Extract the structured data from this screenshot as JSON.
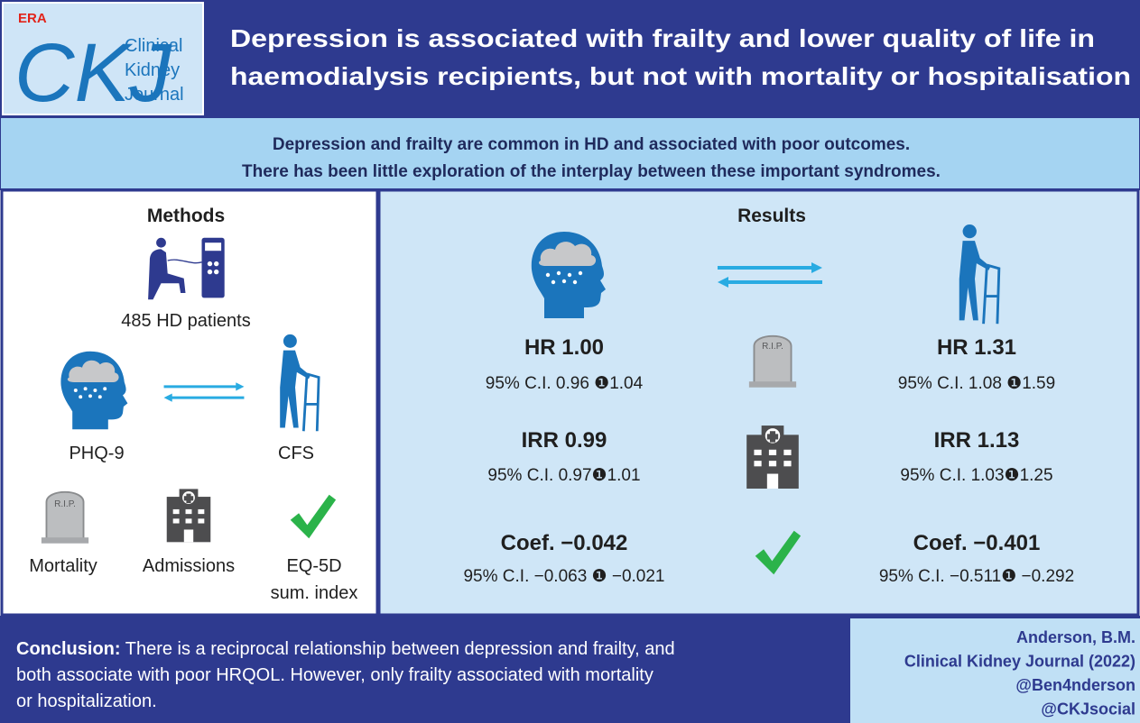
{
  "header": {
    "logo_society": "ERA",
    "logo_mark": "CKJ",
    "logo_journal": [
      "Clinical",
      "Kidney",
      "Journal"
    ],
    "title_lines": [
      "Depression is associated with frailty and lower quality of life in",
      "haemodialysis recipients, but not with mortality or hospitalisation"
    ]
  },
  "intro": {
    "lines": [
      "Depression and frailty are common in HD and associated with poor outcomes.",
      "There has been little exploration of the interplay between these important syndromes."
    ]
  },
  "tombstone_label": "R.I.P.",
  "methods": {
    "title": "Methods",
    "patients": "485 HD patients",
    "exposure": "PHQ-9",
    "frailty": "CFS",
    "outcomes": [
      "Mortality",
      "Admissions"
    ],
    "quality_lines": [
      "EQ-5D",
      "sum. index"
    ]
  },
  "results": {
    "title": "Results",
    "rows": [
      {
        "left": {
          "estimate": "HR 1.00",
          "ci": "95% C.I. 0.96 ❶1.04"
        },
        "right": {
          "estimate": "HR 1.31",
          "ci": "95% C.I. 1.08 ❶1.59"
        }
      },
      {
        "left": {
          "estimate": "IRR 0.99",
          "ci": "95% C.I. 0.97❶1.01"
        },
        "right": {
          "estimate": "IRR 1.13",
          "ci": "95% C.I. 1.03❶1.25"
        }
      },
      {
        "left": {
          "estimate": "Coef. −0.042",
          "ci": "95% C.I. −0.063 ❶ −0.021"
        },
        "right": {
          "estimate": "Coef. −0.401",
          "ci": "95% C.I. −0.511❶ −0.292"
        }
      }
    ]
  },
  "conclusion": {
    "label": "Conclusion:",
    "lines": [
      " There is a reciprocal relationship between depression and frailty, and",
      "both associate with poor HRQOL. However, only frailty associated with mortality",
      "or hospitalization."
    ]
  },
  "citation": {
    "lines": [
      "Anderson, B.M.",
      "Clinical Kidney Journal (2022)",
      "@Ben4nderson",
      "@CKJsocial"
    ]
  }
}
